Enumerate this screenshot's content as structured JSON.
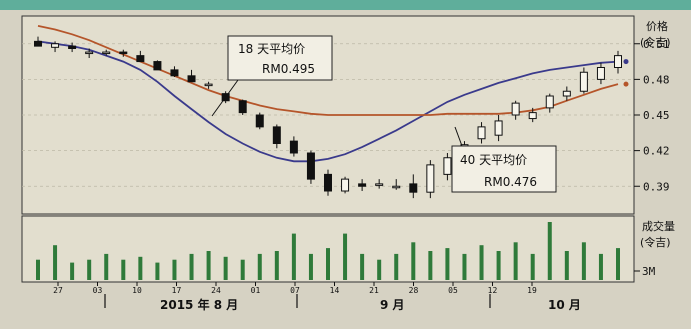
{
  "chart_data": {
    "type": "candlestick",
    "price_axis": {
      "title": "价格",
      "unit": "(令吉)",
      "ticks": [
        "0.51",
        "0.48",
        "0.45",
        "0.42",
        "0.39"
      ],
      "ylim": [
        0.37,
        0.53
      ]
    },
    "volume_axis": {
      "title": "成交量",
      "unit": "(令吉)",
      "ticks": [
        "3M"
      ]
    },
    "x_tick_labels": [
      "27",
      "03",
      "10",
      "17",
      "24",
      "01",
      "07",
      "14",
      "21",
      "28",
      "05",
      "12",
      "19"
    ],
    "month_labels": [
      "2015 年 8 月",
      "9 月",
      "10 月"
    ],
    "annotations": [
      {
        "line1": "18 天平均价",
        "line2": "RM0.495"
      },
      {
        "line1": "40 天平均价",
        "line2": "RM0.476"
      }
    ],
    "series": [
      {
        "name": "18 天平均价",
        "color": "#3a3a8c",
        "values": [
          0.512,
          0.51,
          0.508,
          0.505,
          0.5,
          0.495,
          0.488,
          0.478,
          0.466,
          0.455,
          0.444,
          0.434,
          0.426,
          0.419,
          0.414,
          0.411,
          0.411,
          0.413,
          0.417,
          0.423,
          0.43,
          0.437,
          0.445,
          0.453,
          0.461,
          0.467,
          0.472,
          0.477,
          0.481,
          0.485,
          0.488,
          0.49,
          0.492,
          0.494,
          0.495
        ]
      },
      {
        "name": "40 天平均价",
        "color": "#b5552a",
        "values": [
          0.525,
          0.522,
          0.518,
          0.513,
          0.507,
          0.501,
          0.495,
          0.489,
          0.483,
          0.477,
          0.471,
          0.466,
          0.462,
          0.458,
          0.455,
          0.453,
          0.451,
          0.45,
          0.45,
          0.45,
          0.45,
          0.45,
          0.45,
          0.45,
          0.451,
          0.451,
          0.451,
          0.451,
          0.452,
          0.454,
          0.457,
          0.462,
          0.467,
          0.472,
          0.476
        ]
      }
    ],
    "ohlc": [
      {
        "o": 0.512,
        "h": 0.516,
        "l": 0.508,
        "c": 0.508
      },
      {
        "o": 0.507,
        "h": 0.512,
        "l": 0.503,
        "c": 0.51
      },
      {
        "o": 0.508,
        "h": 0.511,
        "l": 0.503,
        "c": 0.506
      },
      {
        "o": 0.503,
        "h": 0.506,
        "l": 0.498,
        "c": 0.503
      },
      {
        "o": 0.503,
        "h": 0.505,
        "l": 0.5,
        "c": 0.503
      },
      {
        "o": 0.503,
        "h": 0.505,
        "l": 0.499,
        "c": 0.502
      },
      {
        "o": 0.5,
        "h": 0.504,
        "l": 0.495,
        "c": 0.495
      },
      {
        "o": 0.495,
        "h": 0.496,
        "l": 0.488,
        "c": 0.488
      },
      {
        "o": 0.488,
        "h": 0.491,
        "l": 0.482,
        "c": 0.483
      },
      {
        "o": 0.483,
        "h": 0.488,
        "l": 0.478,
        "c": 0.478
      },
      {
        "o": 0.476,
        "h": 0.478,
        "l": 0.472,
        "c": 0.476
      },
      {
        "o": 0.468,
        "h": 0.47,
        "l": 0.46,
        "c": 0.462
      },
      {
        "o": 0.462,
        "h": 0.463,
        "l": 0.45,
        "c": 0.452
      },
      {
        "o": 0.45,
        "h": 0.452,
        "l": 0.438,
        "c": 0.44
      },
      {
        "o": 0.44,
        "h": 0.442,
        "l": 0.422,
        "c": 0.426
      },
      {
        "o": 0.428,
        "h": 0.432,
        "l": 0.415,
        "c": 0.418
      },
      {
        "o": 0.418,
        "h": 0.42,
        "l": 0.392,
        "c": 0.396
      },
      {
        "o": 0.4,
        "h": 0.404,
        "l": 0.382,
        "c": 0.386
      },
      {
        "o": 0.386,
        "h": 0.398,
        "l": 0.384,
        "c": 0.396
      },
      {
        "o": 0.392,
        "h": 0.396,
        "l": 0.386,
        "c": 0.39
      },
      {
        "o": 0.392,
        "h": 0.396,
        "l": 0.388,
        "c": 0.392
      },
      {
        "o": 0.39,
        "h": 0.396,
        "l": 0.387,
        "c": 0.39
      },
      {
        "o": 0.392,
        "h": 0.4,
        "l": 0.38,
        "c": 0.385
      },
      {
        "o": 0.385,
        "h": 0.412,
        "l": 0.38,
        "c": 0.408
      },
      {
        "o": 0.4,
        "h": 0.418,
        "l": 0.395,
        "c": 0.414
      },
      {
        "o": 0.416,
        "h": 0.428,
        "l": 0.413,
        "c": 0.425
      },
      {
        "o": 0.43,
        "h": 0.444,
        "l": 0.426,
        "c": 0.44
      },
      {
        "o": 0.433,
        "h": 0.45,
        "l": 0.428,
        "c": 0.445
      },
      {
        "o": 0.45,
        "h": 0.462,
        "l": 0.446,
        "c": 0.46
      },
      {
        "o": 0.447,
        "h": 0.456,
        "l": 0.444,
        "c": 0.452
      },
      {
        "o": 0.456,
        "h": 0.468,
        "l": 0.452,
        "c": 0.466
      },
      {
        "o": 0.466,
        "h": 0.474,
        "l": 0.462,
        "c": 0.47
      },
      {
        "o": 0.47,
        "h": 0.49,
        "l": 0.468,
        "c": 0.486
      },
      {
        "o": 0.48,
        "h": 0.494,
        "l": 0.476,
        "c": 0.49
      },
      {
        "o": 0.49,
        "h": 0.504,
        "l": 0.485,
        "c": 0.5
      }
    ],
    "volume": [
      0.35,
      0.6,
      0.3,
      0.35,
      0.45,
      0.35,
      0.4,
      0.3,
      0.35,
      0.45,
      0.5,
      0.4,
      0.35,
      0.45,
      0.5,
      0.8,
      0.45,
      0.55,
      0.8,
      0.45,
      0.35,
      0.45,
      0.65,
      0.5,
      0.55,
      0.45,
      0.6,
      0.5,
      0.65,
      0.45,
      1.0,
      0.5,
      0.65,
      0.45,
      0.55
    ]
  }
}
